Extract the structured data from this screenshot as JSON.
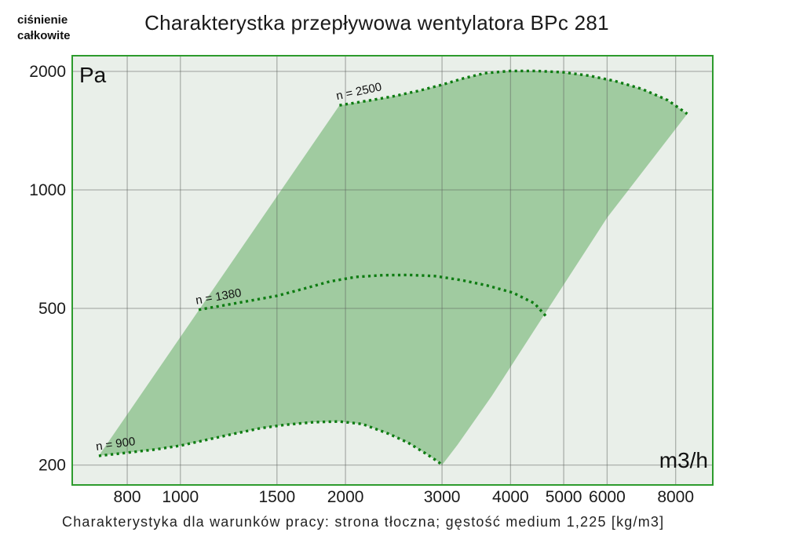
{
  "header": {
    "title": "Charakterystka przepływowa wentylatora BPc 281",
    "corner_label_line1": "ciśnienie",
    "corner_label_line2": "całkowite"
  },
  "footer": {
    "caption": "Charakterystyka dla warunków pracy: strona tłoczna; gęstość medium 1,225 [kg/m3]"
  },
  "chart_data": {
    "type": "area",
    "title": "Charakterystka przepływowa wentylatora BPc 281",
    "xlabel": "m3/h",
    "ylabel": "Pa",
    "x_scale": "log",
    "y_scale": "log",
    "xlim": [
      635,
      9350
    ],
    "ylim": [
      178,
      2192
    ],
    "x_ticks": [
      800,
      1000,
      1500,
      2000,
      3000,
      4000,
      5000,
      6000,
      8000
    ],
    "y_ticks": [
      2000,
      1000,
      500,
      200
    ],
    "grid": true,
    "series": [
      {
        "name": "n = 2500",
        "rpm": 2500,
        "label_rotation": -12,
        "points": [
          [
            1950,
            1640
          ],
          [
            2200,
            1685
          ],
          [
            2450,
            1730
          ],
          [
            2720,
            1785
          ],
          [
            3000,
            1850
          ],
          [
            3280,
            1920
          ],
          [
            3590,
            1980
          ],
          [
            4000,
            2005
          ],
          [
            4460,
            2005
          ],
          [
            4990,
            1990
          ],
          [
            5570,
            1950
          ],
          [
            6200,
            1890
          ],
          [
            6940,
            1805
          ],
          [
            7740,
            1690
          ],
          [
            8400,
            1560
          ]
        ]
      },
      {
        "name": "n = 1380",
        "rpm": 1380,
        "label_rotation": -10,
        "points": [
          [
            1080,
            496
          ],
          [
            1210,
            510
          ],
          [
            1350,
            524
          ],
          [
            1500,
            538
          ],
          [
            1680,
            561
          ],
          [
            1870,
            585
          ],
          [
            2090,
            601
          ],
          [
            2340,
            607
          ],
          [
            2610,
            608
          ],
          [
            2910,
            604
          ],
          [
            3250,
            590
          ],
          [
            3620,
            572
          ],
          [
            4040,
            548
          ],
          [
            4420,
            515
          ],
          [
            4640,
            478
          ]
        ]
      },
      {
        "name": "n = 900",
        "rpm": 900,
        "label_rotation": -8,
        "points": [
          [
            710,
            211
          ],
          [
            800,
            215
          ],
          [
            900,
            219
          ],
          [
            1000,
            224
          ],
          [
            1120,
            232
          ],
          [
            1250,
            240
          ],
          [
            1400,
            248
          ],
          [
            1550,
            253
          ],
          [
            1750,
            257
          ],
          [
            1950,
            258
          ],
          [
            2150,
            254
          ],
          [
            2400,
            240
          ],
          [
            2600,
            228
          ],
          [
            2800,
            214
          ],
          [
            2950,
            204
          ],
          [
            3000,
            200
          ]
        ]
      }
    ],
    "operating_region": {
      "description": "envelope between n = 2500 (top) and n = 900 (bottom) curves",
      "right_boundary": [
        [
          8400,
          1560
        ],
        [
          6000,
          850
        ],
        [
          4600,
          480
        ],
        [
          3700,
          300
        ],
        [
          3200,
          225
        ],
        [
          3000,
          200
        ]
      ]
    },
    "colors": {
      "region_fill": "#a0cba0",
      "plot_background": "#e9efe9",
      "plot_border": "#2d9b2d",
      "curve": "#0e7c12",
      "gridline": "#5f645f",
      "text": "#1a1a1a"
    }
  }
}
